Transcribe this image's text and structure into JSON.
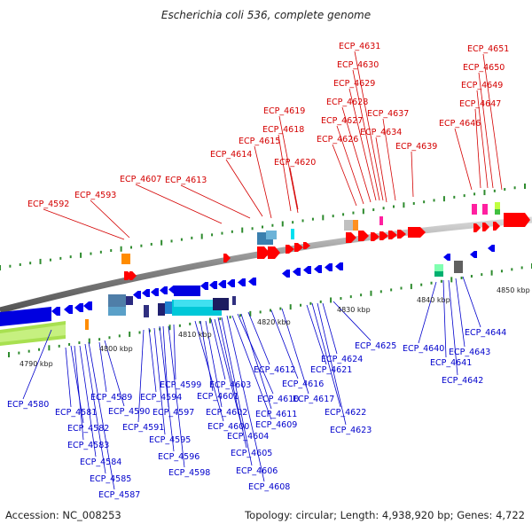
{
  "title": "Escherichia coli 536, complete genome",
  "footer": {
    "accession": "Accession: NC_008253",
    "summary": "Topology: circular; Length: 4,938,920 bp; Genes: 4,722"
  },
  "colors": {
    "forward_label": "#d40000",
    "reverse_label": "#0000cc",
    "forward_gene": "#ff0000",
    "reverse_gene": "#0000ee"
  },
  "ruler_labels": [
    "4790 kbp",
    "4800 kbp",
    "4810 kbp",
    "4820 kbp",
    "4830 kbp",
    "4840 kbp",
    "4850 kbp"
  ],
  "forward_labels": [
    "ECP_4592",
    "ECP_4593",
    "ECP_4607",
    "ECP_4613",
    "ECP_4614",
    "ECP_4615",
    "ECP_4618",
    "ECP_4619",
    "ECP_4620",
    "ECP_4626",
    "ECP_4627",
    "ECP_4628",
    "ECP_4629",
    "ECP_4630",
    "ECP_4631",
    "ECP_4634",
    "ECP_4637",
    "ECP_4639",
    "ECP_4646",
    "ECP_4647",
    "ECP_4649",
    "ECP_4650",
    "ECP_4651"
  ],
  "reverse_labels": [
    "ECP_4580",
    "ECP_4581",
    "ECP_4582",
    "ECP_4583",
    "ECP_4584",
    "ECP_4585",
    "ECP_4587",
    "ECP_4589",
    "ECP_4590",
    "ECP_4591",
    "ECP_4594",
    "ECP_4595",
    "ECP_4596",
    "ECP_4597",
    "ECP_4598",
    "ECP_4599",
    "ECP_4600",
    "ECP_4601",
    "ECP_4602",
    "ECP_4603",
    "ECP_4604",
    "ECP_4605",
    "ECP_4606",
    "ECP_4608",
    "ECP_4609",
    "ECP_4610",
    "ECP_4611",
    "ECP_4612",
    "ECP_4616",
    "ECP_4617",
    "ECP_4621",
    "ECP_4622",
    "ECP_4623",
    "ECP_4624",
    "ECP_4625",
    "ECP_4640",
    "ECP_4641",
    "ECP_4642",
    "ECP_4643",
    "ECP_4644"
  ]
}
